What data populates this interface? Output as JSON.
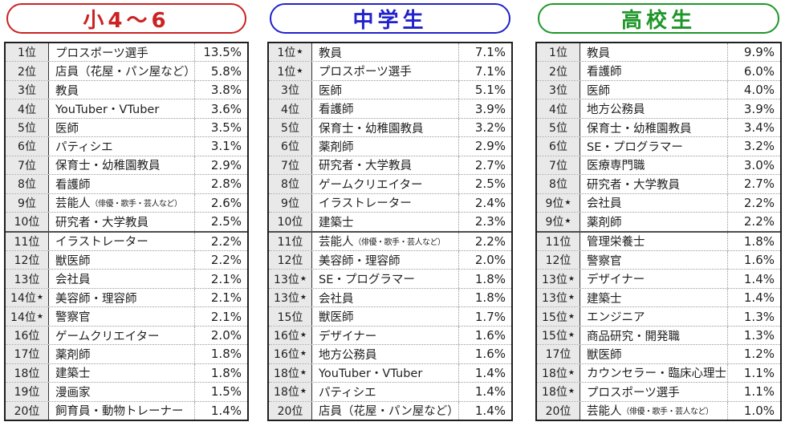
{
  "page": {
    "background": "#ffffff",
    "table_border_color": "#1f1f1f",
    "rank_cell_bg": "#e9e9e9"
  },
  "chart_data": [
    {
      "type": "table",
      "title": "小4～6",
      "accent_color": "#cc2222",
      "columns": [
        "rank",
        "occupation",
        "percent"
      ],
      "rows": [
        {
          "rank": "1位",
          "starred": false,
          "occupation": "プロスポーツ選手",
          "occupation_note": "",
          "percent": "13.5%",
          "value": 13.5
        },
        {
          "rank": "2位",
          "starred": false,
          "occupation": "店員（花屋・パン屋など）",
          "occupation_note": "",
          "percent": "5.8%",
          "value": 5.8
        },
        {
          "rank": "3位",
          "starred": false,
          "occupation": "教員",
          "occupation_note": "",
          "percent": "3.8%",
          "value": 3.8
        },
        {
          "rank": "4位",
          "starred": false,
          "occupation": "YouTuber・VTuber",
          "occupation_note": "",
          "percent": "3.6%",
          "value": 3.6
        },
        {
          "rank": "5位",
          "starred": false,
          "occupation": "医師",
          "occupation_note": "",
          "percent": "3.5%",
          "value": 3.5
        },
        {
          "rank": "6位",
          "starred": false,
          "occupation": "パティシエ",
          "occupation_note": "",
          "percent": "3.1%",
          "value": 3.1
        },
        {
          "rank": "7位",
          "starred": false,
          "occupation": "保育士・幼稚園教員",
          "occupation_note": "",
          "percent": "2.9%",
          "value": 2.9
        },
        {
          "rank": "8位",
          "starred": false,
          "occupation": "看護師",
          "occupation_note": "",
          "percent": "2.8%",
          "value": 2.8
        },
        {
          "rank": "9位",
          "starred": false,
          "occupation": "芸能人",
          "occupation_note": "（俳優・歌手・芸人など）",
          "percent": "2.6%",
          "value": 2.6
        },
        {
          "rank": "10位",
          "starred": false,
          "occupation": "研究者・大学教員",
          "occupation_note": "",
          "percent": "2.5%",
          "value": 2.5
        },
        {
          "rank": "11位",
          "starred": false,
          "occupation": "イラストレーター",
          "occupation_note": "",
          "percent": "2.2%",
          "value": 2.2
        },
        {
          "rank": "12位",
          "starred": false,
          "occupation": "獣医師",
          "occupation_note": "",
          "percent": "2.2%",
          "value": 2.2
        },
        {
          "rank": "13位",
          "starred": false,
          "occupation": "会社員",
          "occupation_note": "",
          "percent": "2.1%",
          "value": 2.1
        },
        {
          "rank": "14位",
          "starred": true,
          "occupation": "美容師・理容師",
          "occupation_note": "",
          "percent": "2.1%",
          "value": 2.1
        },
        {
          "rank": "14位",
          "starred": true,
          "occupation": "警察官",
          "occupation_note": "",
          "percent": "2.1%",
          "value": 2.1
        },
        {
          "rank": "16位",
          "starred": false,
          "occupation": "ゲームクリエイター",
          "occupation_note": "",
          "percent": "2.0%",
          "value": 2.0
        },
        {
          "rank": "17位",
          "starred": false,
          "occupation": "薬剤師",
          "occupation_note": "",
          "percent": "1.8%",
          "value": 1.8
        },
        {
          "rank": "18位",
          "starred": false,
          "occupation": "建築士",
          "occupation_note": "",
          "percent": "1.8%",
          "value": 1.8
        },
        {
          "rank": "19位",
          "starred": false,
          "occupation": "漫画家",
          "occupation_note": "",
          "percent": "1.5%",
          "value": 1.5
        },
        {
          "rank": "20位",
          "starred": false,
          "occupation": "飼育員・動物トレーナー",
          "occupation_note": "",
          "percent": "1.4%",
          "value": 1.4
        }
      ]
    },
    {
      "type": "table",
      "title": "中学生",
      "accent_color": "#2222cc",
      "columns": [
        "rank",
        "occupation",
        "percent"
      ],
      "rows": [
        {
          "rank": "1位",
          "starred": true,
          "occupation": "教員",
          "occupation_note": "",
          "percent": "7.1%",
          "value": 7.1
        },
        {
          "rank": "1位",
          "starred": true,
          "occupation": "プロスポーツ選手",
          "occupation_note": "",
          "percent": "7.1%",
          "value": 7.1
        },
        {
          "rank": "3位",
          "starred": false,
          "occupation": "医師",
          "occupation_note": "",
          "percent": "5.1%",
          "value": 5.1
        },
        {
          "rank": "4位",
          "starred": false,
          "occupation": "看護師",
          "occupation_note": "",
          "percent": "3.9%",
          "value": 3.9
        },
        {
          "rank": "5位",
          "starred": false,
          "occupation": "保育士・幼稚園教員",
          "occupation_note": "",
          "percent": "3.2%",
          "value": 3.2
        },
        {
          "rank": "6位",
          "starred": false,
          "occupation": "薬剤師",
          "occupation_note": "",
          "percent": "2.9%",
          "value": 2.9
        },
        {
          "rank": "7位",
          "starred": false,
          "occupation": "研究者・大学教員",
          "occupation_note": "",
          "percent": "2.7%",
          "value": 2.7
        },
        {
          "rank": "8位",
          "starred": false,
          "occupation": "ゲームクリエイター",
          "occupation_note": "",
          "percent": "2.5%",
          "value": 2.5
        },
        {
          "rank": "9位",
          "starred": false,
          "occupation": "イラストレーター",
          "occupation_note": "",
          "percent": "2.4%",
          "value": 2.4
        },
        {
          "rank": "10位",
          "starred": false,
          "occupation": "建築士",
          "occupation_note": "",
          "percent": "2.3%",
          "value": 2.3
        },
        {
          "rank": "11位",
          "starred": false,
          "occupation": "芸能人",
          "occupation_note": "（俳優・歌手・芸人など）",
          "percent": "2.2%",
          "value": 2.2
        },
        {
          "rank": "12位",
          "starred": false,
          "occupation": "美容師・理容師",
          "occupation_note": "",
          "percent": "2.0%",
          "value": 2.0
        },
        {
          "rank": "13位",
          "starred": true,
          "occupation": "SE・プログラマー",
          "occupation_note": "",
          "percent": "1.8%",
          "value": 1.8
        },
        {
          "rank": "13位",
          "starred": true,
          "occupation": "会社員",
          "occupation_note": "",
          "percent": "1.8%",
          "value": 1.8
        },
        {
          "rank": "15位",
          "starred": false,
          "occupation": "獣医師",
          "occupation_note": "",
          "percent": "1.7%",
          "value": 1.7
        },
        {
          "rank": "16位",
          "starred": true,
          "occupation": "デザイナー",
          "occupation_note": "",
          "percent": "1.6%",
          "value": 1.6
        },
        {
          "rank": "16位",
          "starred": true,
          "occupation": "地方公務員",
          "occupation_note": "",
          "percent": "1.6%",
          "value": 1.6
        },
        {
          "rank": "18位",
          "starred": true,
          "occupation": "YouTuber・VTuber",
          "occupation_note": "",
          "percent": "1.4%",
          "value": 1.4
        },
        {
          "rank": "18位",
          "starred": true,
          "occupation": "パティシエ",
          "occupation_note": "",
          "percent": "1.4%",
          "value": 1.4
        },
        {
          "rank": "20位",
          "starred": false,
          "occupation": "店員（花屋・パン屋など）",
          "occupation_note": "",
          "percent": "1.4%",
          "value": 1.4
        }
      ]
    },
    {
      "type": "table",
      "title": "高校生",
      "accent_color": "#1e9628",
      "columns": [
        "rank",
        "occupation",
        "percent"
      ],
      "rows": [
        {
          "rank": "1位",
          "starred": false,
          "occupation": "教員",
          "occupation_note": "",
          "percent": "9.9%",
          "value": 9.9
        },
        {
          "rank": "2位",
          "starred": false,
          "occupation": "看護師",
          "occupation_note": "",
          "percent": "6.0%",
          "value": 6.0
        },
        {
          "rank": "3位",
          "starred": false,
          "occupation": "医師",
          "occupation_note": "",
          "percent": "4.0%",
          "value": 4.0
        },
        {
          "rank": "4位",
          "starred": false,
          "occupation": "地方公務員",
          "occupation_note": "",
          "percent": "3.9%",
          "value": 3.9
        },
        {
          "rank": "5位",
          "starred": false,
          "occupation": "保育士・幼稚園教員",
          "occupation_note": "",
          "percent": "3.4%",
          "value": 3.4
        },
        {
          "rank": "6位",
          "starred": false,
          "occupation": "SE・プログラマー",
          "occupation_note": "",
          "percent": "3.2%",
          "value": 3.2
        },
        {
          "rank": "7位",
          "starred": false,
          "occupation": "医療専門職",
          "occupation_note": "",
          "percent": "3.0%",
          "value": 3.0
        },
        {
          "rank": "8位",
          "starred": false,
          "occupation": "研究者・大学教員",
          "occupation_note": "",
          "percent": "2.7%",
          "value": 2.7
        },
        {
          "rank": "9位",
          "starred": true,
          "occupation": "会社員",
          "occupation_note": "",
          "percent": "2.2%",
          "value": 2.2
        },
        {
          "rank": "9位",
          "starred": true,
          "occupation": "薬剤師",
          "occupation_note": "",
          "percent": "2.2%",
          "value": 2.2
        },
        {
          "rank": "11位",
          "starred": false,
          "occupation": "管理栄養士",
          "occupation_note": "",
          "percent": "1.8%",
          "value": 1.8
        },
        {
          "rank": "12位",
          "starred": false,
          "occupation": "警察官",
          "occupation_note": "",
          "percent": "1.6%",
          "value": 1.6
        },
        {
          "rank": "13位",
          "starred": true,
          "occupation": "デザイナー",
          "occupation_note": "",
          "percent": "1.4%",
          "value": 1.4
        },
        {
          "rank": "13位",
          "starred": true,
          "occupation": "建築士",
          "occupation_note": "",
          "percent": "1.4%",
          "value": 1.4
        },
        {
          "rank": "15位",
          "starred": true,
          "occupation": "エンジニア",
          "occupation_note": "",
          "percent": "1.3%",
          "value": 1.3
        },
        {
          "rank": "15位",
          "starred": true,
          "occupation": "商品研究・開発職",
          "occupation_note": "",
          "percent": "1.3%",
          "value": 1.3
        },
        {
          "rank": "17位",
          "starred": false,
          "occupation": "獣医師",
          "occupation_note": "",
          "percent": "1.2%",
          "value": 1.2
        },
        {
          "rank": "18位",
          "starred": true,
          "occupation": "カウンセラー・臨床心理士",
          "occupation_note": "",
          "percent": "1.1%",
          "value": 1.1
        },
        {
          "rank": "18位",
          "starred": true,
          "occupation": "プロスポーツ選手",
          "occupation_note": "",
          "percent": "1.1%",
          "value": 1.1
        },
        {
          "rank": "20位",
          "starred": false,
          "occupation": "芸能人",
          "occupation_note": "（俳優・歌手・芸人など）",
          "percent": "1.0%",
          "value": 1.0
        }
      ]
    }
  ]
}
